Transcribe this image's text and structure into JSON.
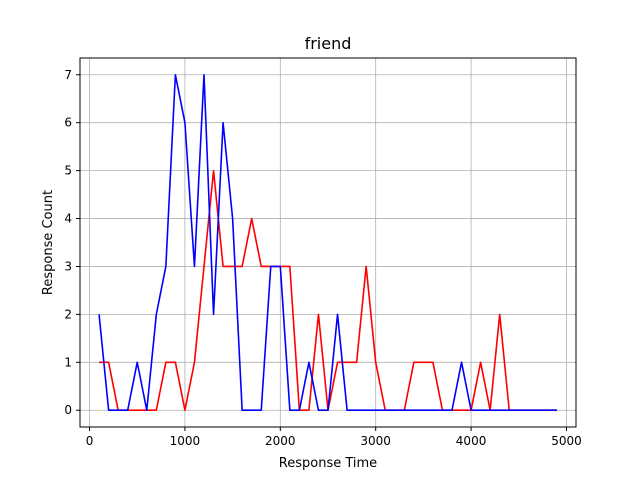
{
  "chart_data": {
    "type": "line",
    "title": "friend",
    "xlabel": "Response Time",
    "ylabel": "Response Count",
    "xlim": [
      -100,
      5100
    ],
    "ylim": [
      -0.35,
      7.35
    ],
    "xticks": [
      0,
      1000,
      2000,
      3000,
      4000,
      5000
    ],
    "yticks": [
      0,
      1,
      2,
      3,
      4,
      5,
      6,
      7
    ],
    "grid": true,
    "legend": "none",
    "x": [
      100,
      200,
      300,
      400,
      500,
      600,
      700,
      800,
      900,
      1000,
      1100,
      1200,
      1300,
      1400,
      1500,
      1600,
      1700,
      1800,
      1900,
      2000,
      2100,
      2200,
      2300,
      2400,
      2500,
      2600,
      2700,
      2800,
      2900,
      3000,
      3100,
      3200,
      3300,
      3400,
      3500,
      3600,
      3700,
      3800,
      3900,
      4000,
      4100,
      4200,
      4300,
      4400,
      4500,
      4600,
      4700,
      4800,
      4900
    ],
    "series": [
      {
        "color": "#ff0000",
        "values": [
          1,
          1,
          0,
          0,
          0,
          0,
          0,
          1,
          1,
          0,
          1,
          3,
          5,
          3,
          3,
          3,
          4,
          3,
          3,
          3,
          3,
          0,
          0,
          2,
          0,
          1,
          1,
          1,
          3,
          1,
          0,
          0,
          0,
          1,
          1,
          1,
          0,
          0,
          0,
          0,
          1,
          0,
          2,
          0,
          0,
          0,
          0,
          0,
          0
        ]
      },
      {
        "color": "#0000ff",
        "values": [
          2,
          0,
          0,
          0,
          1,
          0,
          2,
          3,
          7,
          6,
          3,
          7,
          2,
          6,
          4,
          0,
          0,
          0,
          3,
          3,
          0,
          0,
          1,
          0,
          0,
          2,
          0,
          0,
          0,
          0,
          0,
          0,
          0,
          0,
          0,
          0,
          0,
          0,
          1,
          0,
          0,
          0,
          0,
          0,
          0,
          0,
          0,
          0,
          0
        ]
      }
    ]
  }
}
